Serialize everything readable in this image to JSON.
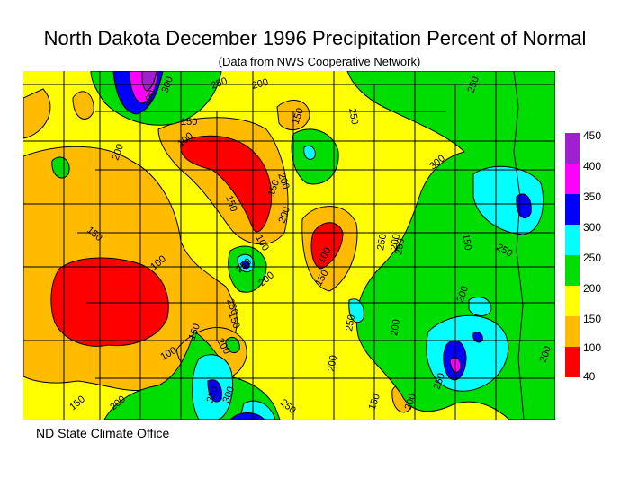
{
  "title": "North Dakota December 1996 Precipitation Percent of Normal",
  "subtitle": "(Data from NWS Cooperative Network)",
  "credit": "ND State Climate Office",
  "legend": [
    {
      "label": "450",
      "color": "#a020d0"
    },
    {
      "label": "400",
      "color": "#ff00ff"
    },
    {
      "label": "350",
      "color": "#0000ff"
    },
    {
      "label": "300",
      "color": "#00ffff"
    },
    {
      "label": "250",
      "color": "#00dd00"
    },
    {
      "label": "200",
      "color": "#ffff00"
    },
    {
      "label": "150",
      "color": "#ffbb00"
    },
    {
      "label": "100",
      "color": "#ff0000"
    },
    {
      "label": "40",
      "color": "#ff0000"
    }
  ],
  "contour_labels": [
    "250",
    "200",
    "400",
    "300",
    "150",
    "100",
    "150",
    "150",
    "200",
    "150",
    "100",
    "200",
    "250",
    "100",
    "150",
    "200",
    "250",
    "250",
    "200",
    "150",
    "100",
    "150",
    "250",
    "100",
    "150",
    "200",
    "250",
    "300",
    "150",
    "200",
    "250",
    "250",
    "200",
    "250",
    "150",
    "200",
    "200",
    "200",
    "250",
    "200",
    "250",
    "300",
    "150",
    "200",
    "250"
  ]
}
